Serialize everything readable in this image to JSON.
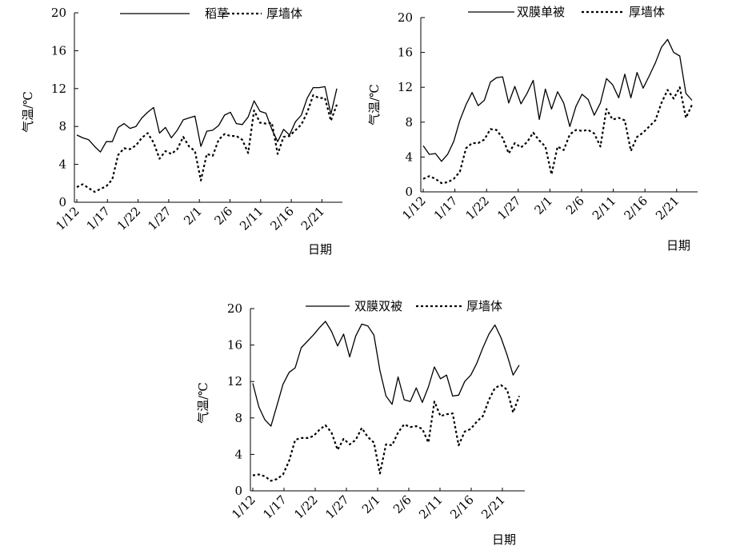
{
  "chart_data": [
    {
      "type": "line",
      "title": "",
      "xlabel": "日期",
      "ylabel": "气温/℃",
      "ylim": [
        0,
        20
      ],
      "yticks": [
        0,
        4,
        8,
        12,
        16,
        20
      ],
      "x_tick_labels": [
        "1/12",
        "1/17",
        "1/22",
        "1/27",
        "2/1",
        "2/6",
        "2/11",
        "2/16",
        "2/21"
      ],
      "legend_position": "top",
      "grid": false,
      "series": [
        {
          "name": "稻草",
          "style": "solid",
          "values": [
            7.1,
            6.8,
            6.6,
            5.9,
            5.3,
            6.4,
            6.4,
            7.9,
            8.3,
            7.8,
            8.0,
            8.9,
            9.5,
            10.0,
            7.3,
            7.9,
            6.8,
            7.6,
            8.7,
            8.9,
            9.1,
            5.9,
            7.5,
            7.6,
            8.1,
            9.2,
            9.5,
            8.3,
            8.2,
            9.0,
            10.7,
            9.6,
            9.4,
            7.7,
            6.4,
            7.7,
            7.1,
            8.5,
            9.2,
            11.0,
            12.1,
            12.1,
            12.2,
            9.3,
            12.0
          ]
        },
        {
          "name": "厚墙体",
          "style": "dashed",
          "values": [
            1.6,
            1.9,
            1.5,
            1.1,
            1.4,
            1.7,
            2.4,
            5.0,
            5.7,
            5.6,
            6.0,
            6.8,
            7.3,
            6.3,
            4.6,
            5.4,
            5.1,
            5.6,
            6.9,
            5.9,
            5.4,
            2.3,
            5.1,
            4.9,
            6.6,
            7.2,
            7.0,
            7.0,
            6.6,
            5.2,
            9.7,
            8.4,
            8.3,
            8.4,
            5.1,
            6.9,
            7.0,
            7.6,
            8.2,
            9.5,
            11.3,
            11.0,
            11.0,
            8.6,
            10.3
          ]
        }
      ]
    },
    {
      "type": "line",
      "title": "",
      "xlabel": "日期",
      "ylabel": "气温/℃",
      "ylim": [
        0,
        20
      ],
      "yticks": [
        0,
        4,
        8,
        12,
        16,
        20
      ],
      "x_tick_labels": [
        "1/12",
        "1/17",
        "1/22",
        "1/27",
        "2/1",
        "2/6",
        "2/11",
        "2/16",
        "2/21"
      ],
      "legend_position": "top",
      "grid": false,
      "series": [
        {
          "name": "双膜单被",
          "style": "solid",
          "values": [
            5.3,
            4.3,
            4.4,
            3.5,
            4.3,
            5.8,
            8.2,
            10.0,
            11.4,
            9.9,
            10.5,
            12.6,
            13.1,
            13.2,
            10.2,
            12.1,
            10.1,
            11.3,
            12.8,
            8.3,
            11.8,
            9.5,
            11.5,
            10.2,
            7.5,
            9.8,
            11.2,
            10.6,
            8.8,
            10.2,
            13.0,
            12.3,
            10.8,
            13.5,
            10.8,
            13.7,
            11.9,
            13.3,
            14.8,
            16.6,
            17.5,
            16.0,
            15.6,
            11.3,
            10.5
          ]
        },
        {
          "name": "厚墙体",
          "style": "dashed",
          "values": [
            1.5,
            1.8,
            1.5,
            1.0,
            1.1,
            1.5,
            2.3,
            5.0,
            5.6,
            5.6,
            6.0,
            7.2,
            7.1,
            6.2,
            4.4,
            5.6,
            5.1,
            5.7,
            6.8,
            5.9,
            5.2,
            2.0,
            5.2,
            4.8,
            6.6,
            7.1,
            7.0,
            7.1,
            6.7,
            5.2,
            9.5,
            8.3,
            8.5,
            8.2,
            4.7,
            6.3,
            6.8,
            7.5,
            8.2,
            10.2,
            11.7,
            10.7,
            12.0,
            8.5,
            10.0
          ]
        }
      ]
    },
    {
      "type": "line",
      "title": "",
      "xlabel": "日期",
      "ylabel": "气温/℃",
      "ylim": [
        0,
        20
      ],
      "yticks": [
        0,
        4,
        8,
        12,
        16,
        20
      ],
      "x_tick_labels": [
        "1/12",
        "1/17",
        "1/22",
        "1/27",
        "2/1",
        "2/6",
        "2/11",
        "2/16",
        "2/21"
      ],
      "legend_position": "top",
      "grid": false,
      "series": [
        {
          "name": "双膜双被",
          "style": "solid",
          "values": [
            11.8,
            9.2,
            7.8,
            7.1,
            9.4,
            11.7,
            13.0,
            13.5,
            15.7,
            16.4,
            17.1,
            17.9,
            18.6,
            17.5,
            15.9,
            17.2,
            14.7,
            17.0,
            18.3,
            18.1,
            17.1,
            13.2,
            10.4,
            9.5,
            12.5,
            10.0,
            9.8,
            11.3,
            9.7,
            11.4,
            13.6,
            12.3,
            12.7,
            10.4,
            10.5,
            12.0,
            12.7,
            14.0,
            15.7,
            17.2,
            18.2,
            16.8,
            14.9,
            12.7,
            13.8
          ]
        },
        {
          "name": "厚墙体",
          "style": "dashed",
          "values": [
            1.7,
            1.8,
            1.6,
            1.1,
            1.3,
            1.8,
            3.3,
            5.6,
            5.8,
            5.8,
            6.0,
            6.7,
            7.2,
            6.4,
            4.5,
            5.7,
            5.1,
            5.6,
            6.9,
            5.9,
            5.3,
            1.9,
            5.1,
            5.0,
            6.4,
            7.3,
            7.0,
            7.1,
            6.8,
            5.3,
            9.8,
            8.2,
            8.4,
            8.5,
            5.0,
            6.5,
            6.8,
            7.6,
            8.2,
            10.0,
            11.3,
            11.6,
            11.1,
            8.6,
            10.4
          ]
        }
      ]
    }
  ]
}
